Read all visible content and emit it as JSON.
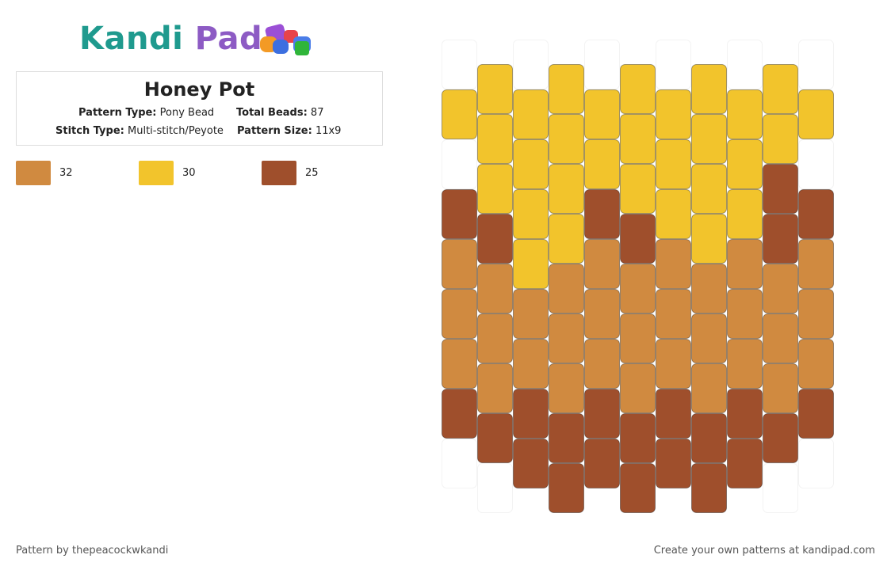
{
  "header": {
    "logo": "Kandi Pad"
  },
  "pattern": {
    "title": "Honey Pot",
    "pattern_type_label": "Pattern Type:",
    "pattern_type": "Pony Bead",
    "total_beads_label": "Total Beads:",
    "total_beads": 87,
    "stitch_type_label": "Stitch Type:",
    "stitch_type": "Multi-stitch/Peyote",
    "pattern_size_label": "Pattern Size:",
    "pattern_size": "11x9"
  },
  "legend": [
    {
      "color": "#d08a40",
      "count": 32
    },
    {
      "color": "#f2c42c",
      "count": 30
    },
    {
      "color": "#9f4f2c",
      "count": 25
    }
  ],
  "grid": [
    [
      null,
      1,
      null,
      2,
      0,
      0,
      0,
      2,
      null
    ],
    [
      1,
      1,
      1,
      2,
      0,
      0,
      0,
      2,
      null
    ],
    [
      null,
      1,
      1,
      1,
      1,
      0,
      0,
      2,
      2
    ],
    [
      1,
      1,
      1,
      1,
      0,
      0,
      0,
      2,
      2
    ],
    [
      null,
      1,
      1,
      2,
      0,
      0,
      0,
      2,
      2
    ],
    [
      1,
      1,
      1,
      2,
      0,
      0,
      0,
      2,
      2
    ],
    [
      null,
      1,
      1,
      1,
      0,
      0,
      0,
      2,
      2
    ],
    [
      1,
      1,
      1,
      1,
      0,
      0,
      0,
      2,
      2
    ],
    [
      null,
      1,
      1,
      1,
      0,
      0,
      0,
      2,
      2
    ],
    [
      1,
      1,
      2,
      2,
      0,
      0,
      0,
      2,
      null
    ],
    [
      null,
      1,
      null,
      2,
      0,
      0,
      0,
      2,
      null
    ]
  ],
  "footer": {
    "left": "Pattern by thepeacockwkandi",
    "right": "Create your own patterns at kandipad.com"
  }
}
